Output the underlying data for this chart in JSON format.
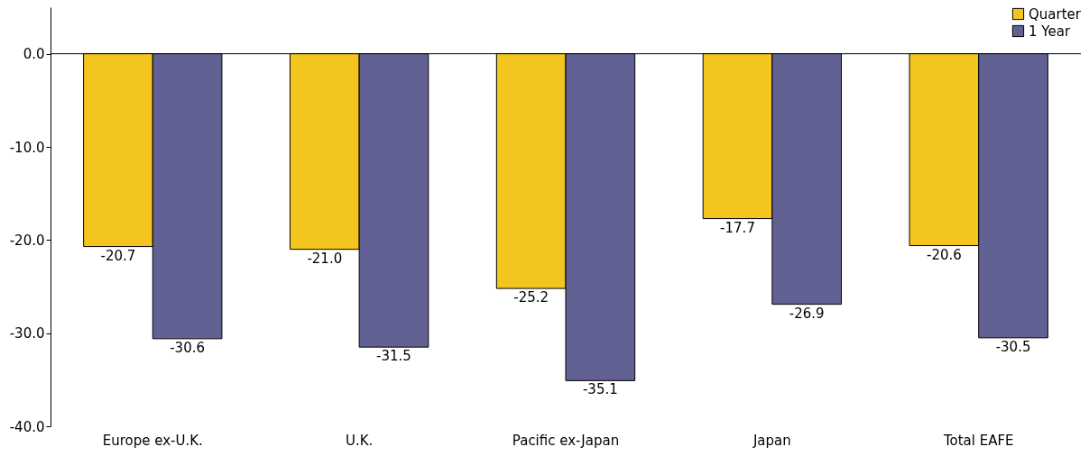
{
  "chart_data": {
    "type": "bar",
    "categories": [
      "Europe ex-U.K.",
      "U.K.",
      "Pacific ex-Japan",
      "Japan",
      "Total EAFE"
    ],
    "series": [
      {
        "name": "Quarter",
        "color": "#f4c51f",
        "values": [
          -20.7,
          -21.0,
          -25.2,
          -17.7,
          -20.6
        ],
        "value_labels": [
          "-20.7",
          "-21.0",
          "-25.2",
          "-17.7",
          "-20.6"
        ]
      },
      {
        "name": "1 Year",
        "color": "#616193",
        "values": [
          -30.6,
          -31.5,
          -35.1,
          -26.9,
          -30.5
        ],
        "value_labels": [
          "-30.6",
          "-31.5",
          "-35.1",
          "-26.9",
          "-30.5"
        ]
      }
    ],
    "ylim": [
      -40,
      5
    ],
    "yticks": [
      {
        "value": -40,
        "label": "-40.0"
      },
      {
        "value": -30,
        "label": "-30.0"
      },
      {
        "value": -20,
        "label": "-20.0"
      },
      {
        "value": -10,
        "label": "-10.0"
      },
      {
        "value": 0,
        "label": "0.0"
      }
    ],
    "legend": "top right"
  }
}
